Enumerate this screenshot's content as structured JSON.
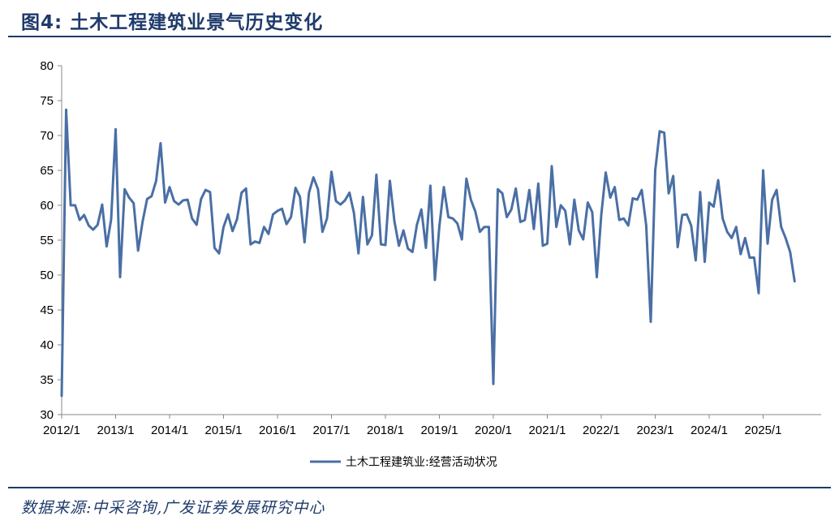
{
  "header": {
    "title": "图4:  土木工程建筑业景气历史变化"
  },
  "footer": {
    "source": "数据来源:中采咨询,广发证券发展研究中心"
  },
  "chart_data": {
    "type": "line",
    "title": "图4:  土木工程建筑业景气历史变化",
    "xlabel": "",
    "ylabel": "",
    "ylim": [
      30,
      80
    ],
    "yticks": [
      30,
      35,
      40,
      45,
      50,
      55,
      60,
      65,
      70,
      75,
      80
    ],
    "xtick_labels": [
      "2012/1",
      "2013/1",
      "2014/1",
      "2015/1",
      "2016/1",
      "2017/1",
      "2018/1",
      "2019/1",
      "2020/1",
      "2021/1",
      "2022/1",
      "2023/1",
      "2024/1",
      "2025/1"
    ],
    "x_start": "2012/1",
    "x_end": "2025/10",
    "legend": "bottom-center",
    "grid": false,
    "series_color": "#4a6fa5",
    "series": [
      {
        "name": "土木工程建筑业:经营活动状况",
        "values": [
          32.7,
          73.7,
          60.0,
          60.0,
          57.9,
          58.6,
          57.1,
          56.5,
          57.2,
          60.1,
          54.1,
          58.0,
          70.9,
          49.7,
          62.3,
          61.1,
          60.3,
          53.5,
          57.7,
          60.9,
          61.3,
          63.5,
          68.9,
          60.4,
          62.6,
          60.6,
          60.1,
          60.7,
          60.8,
          58.1,
          57.2,
          60.9,
          62.2,
          61.9,
          53.9,
          53.1,
          56.9,
          58.7,
          56.3,
          58.0,
          61.8,
          62.4,
          54.4,
          54.8,
          54.6,
          56.9,
          55.9,
          58.7,
          59.2,
          59.5,
          57.3,
          58.3,
          62.5,
          61.2,
          54.7,
          61.8,
          64.0,
          62.3,
          56.2,
          58.1,
          64.8,
          60.6,
          60.1,
          60.7,
          61.8,
          58.9,
          53.1,
          61.2,
          54.4,
          55.7,
          64.4,
          54.4,
          54.3,
          63.5,
          57.7,
          54.2,
          56.4,
          53.8,
          53.3,
          57.2,
          59.4,
          53.9,
          62.8,
          49.3,
          57.0,
          62.6,
          58.3,
          58.1,
          57.4,
          55.1,
          63.8,
          60.8,
          59.1,
          56.2,
          56.9,
          56.9,
          34.4,
          62.3,
          61.7,
          58.3,
          59.4,
          62.4,
          57.6,
          57.9,
          62.2,
          56.6,
          63.1,
          54.2,
          54.5,
          65.6,
          56.9,
          60.0,
          59.2,
          54.4,
          60.8,
          56.4,
          55.1,
          60.4,
          59.0,
          49.7,
          58.6,
          64.7,
          61.1,
          62.6,
          57.9,
          58.1,
          57.1,
          61.0,
          60.8,
          62.2,
          57.1,
          43.3,
          65.0,
          70.6,
          70.4,
          61.7,
          64.2,
          54.0,
          58.6,
          58.7,
          57.1,
          52.1,
          61.9,
          51.9,
          60.4,
          59.8,
          63.6,
          58.1,
          56.2,
          55.3,
          56.9,
          53.0,
          55.3,
          52.5,
          52.5,
          47.4,
          65.0,
          54.5,
          60.8,
          62.2,
          56.9,
          55.3,
          53.3,
          49.1
        ]
      }
    ]
  }
}
